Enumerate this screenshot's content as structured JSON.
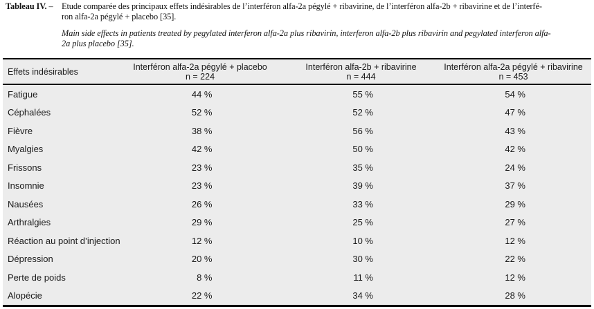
{
  "caption": {
    "label": "Tableau IV.",
    "dash": "–",
    "fr_lines": [
      "Etude comparée des principaux effets indésirables de l’interféron alfa-2a pégylé + ribavirine, de l’interféron alfa-2b + ribavirine et de l’interfé-",
      "ron alfa-2a pégylé + placebo [35]."
    ],
    "en_lines": [
      "Main side effects in patients treated by pegylated interferon alfa-2a plus ribavirin, interferon alfa-2b plus ribavirin and pegylated interferon alfa-",
      "2a plus placebo [35]."
    ]
  },
  "table": {
    "columns": [
      {
        "label": "Effets indésirables",
        "sub": ""
      },
      {
        "label": "Interféron alfa-2a pégylé + placebo",
        "sub": "n = 224"
      },
      {
        "label": "Interféron alfa-2b + ribavirine",
        "sub": "n = 444"
      },
      {
        "label": "Interféron alfa-2a pégylé + ribavirine",
        "sub": "n = 453"
      }
    ],
    "rows": [
      {
        "label": "Fatigue",
        "values": [
          "44 %",
          "55 %",
          "54 %"
        ]
      },
      {
        "label": "Céphalées",
        "values": [
          "52 %",
          "52 %",
          "47 %"
        ]
      },
      {
        "label": "Fièvre",
        "values": [
          "38 %",
          "56 %",
          "43 %"
        ]
      },
      {
        "label": "Myalgies",
        "values": [
          "42 %",
          "50 %",
          "42 %"
        ]
      },
      {
        "label": "Frissons",
        "values": [
          "23 %",
          "35 %",
          "24 %"
        ]
      },
      {
        "label": "Insomnie",
        "values": [
          "23 %",
          "39 %",
          "37 %"
        ]
      },
      {
        "label": "Nausées",
        "values": [
          "26 %",
          "33 %",
          "29 %"
        ]
      },
      {
        "label": "Arthralgies",
        "values": [
          "29 %",
          "25 %",
          "27 %"
        ]
      },
      {
        "label": "Réaction au point d’injection",
        "values": [
          "12 %",
          "10 %",
          "12 %"
        ]
      },
      {
        "label": "Dépression",
        "values": [
          "20 %",
          "30 %",
          "22 %"
        ]
      },
      {
        "label": "Perte de poids",
        "values": [
          "8 %",
          "11 %",
          "12 %"
        ]
      },
      {
        "label": "Alopécie",
        "values": [
          "22 %",
          "34 %",
          "28 %"
        ]
      }
    ]
  },
  "colors": {
    "table_background": "#ececec",
    "rule": "#000000",
    "text": "#1a1a1a"
  }
}
